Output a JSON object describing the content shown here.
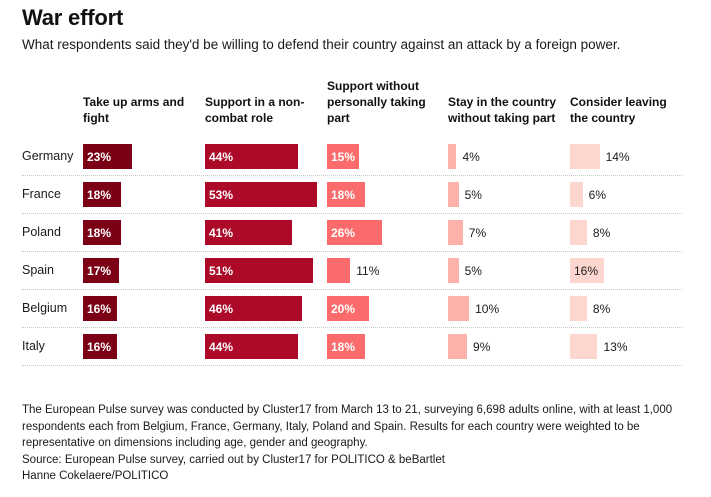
{
  "title": "War effort",
  "subtitle": "What respondents said they'd be willing to defend their country against an attack by a foreign power.",
  "chart_data": {
    "type": "table",
    "title": "War effort",
    "subtitle": "What respondents said they'd be willing to defend their country against an attack by a foreign power.",
    "columns": [
      {
        "key": "arms",
        "label_lines": [
          "Take up arms and",
          "fight"
        ],
        "color": "#7b0016",
        "max": 53
      },
      {
        "key": "noncombat",
        "label_lines": [
          "Support in a non-",
          "combat role"
        ],
        "color": "#ad0a29",
        "max": 53
      },
      {
        "key": "support",
        "label_lines": [
          "Support without",
          "personally taking",
          "part"
        ],
        "color": "#fb6b6b",
        "max": 53
      },
      {
        "key": "stay",
        "label_lines": [
          "Stay in the country",
          "without taking part"
        ],
        "color": "#fcb1aa",
        "max": 53
      },
      {
        "key": "leave",
        "label_lines": [
          "Consider leaving",
          "the country"
        ],
        "color": "#fdd6cf",
        "max": 53
      }
    ],
    "rows": [
      {
        "country": "Germany",
        "values": [
          23,
          44,
          15,
          4,
          14
        ]
      },
      {
        "country": "France",
        "values": [
          18,
          53,
          18,
          5,
          6
        ]
      },
      {
        "country": "Poland",
        "values": [
          18,
          41,
          26,
          7,
          8
        ]
      },
      {
        "country": "Spain",
        "values": [
          17,
          51,
          11,
          5,
          16
        ]
      },
      {
        "country": "Belgium",
        "values": [
          16,
          46,
          20,
          10,
          8
        ]
      },
      {
        "country": "Italy",
        "values": [
          16,
          44,
          18,
          9,
          13
        ]
      }
    ],
    "unit": "%"
  },
  "footer": {
    "note": "The European Pulse survey was conducted by Cluster17 from March 13 to 21, surveying 6,698 adults online, with at least 1,000 respondents each from Belgium, France, Germany, Italy, Poland and Spain. Results for each country were weighted to be representative on dimensions including age, gender and geography.",
    "source": "Source: European Pulse survey, carried out by Cluster17 for POLITICO & beBartlet",
    "credit": "Hanne Cokelaere/POLITICO"
  }
}
